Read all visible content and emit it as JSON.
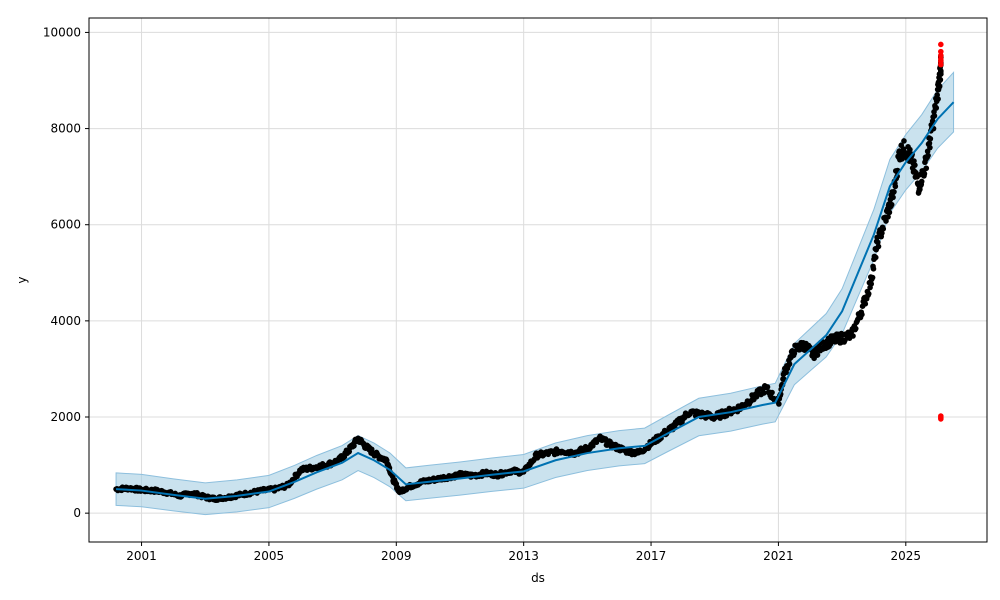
{
  "chart_data": {
    "type": "scatter",
    "title": "",
    "xlabel": "ds",
    "ylabel": "y",
    "xlim": [
      1999.35,
      2027.55
    ],
    "ylim": [
      -600,
      10300
    ],
    "x_ticks": [
      2001,
      2005,
      2009,
      2013,
      2017,
      2021,
      2025
    ],
    "x_tick_labels": [
      "2001",
      "2005",
      "2009",
      "2013",
      "2017",
      "2021",
      "2025"
    ],
    "y_ticks": [
      0,
      2000,
      4000,
      6000,
      8000,
      10000
    ],
    "y_tick_labels": [
      "0",
      "2000",
      "4000",
      "6000",
      "8000",
      "10000"
    ],
    "grid": true,
    "colors": {
      "observed": "#000000",
      "forecast": "#0072B2",
      "interval": "#A6CEE3",
      "outliers": "#FF0000"
    },
    "series": [
      {
        "kind": "observed",
        "x": [
          2000.2,
          2000.6,
          2001.0,
          2001.4,
          2001.8,
          2002.2,
          2002.6,
          2003.0,
          2003.3,
          2003.7,
          2004.0,
          2004.4,
          2004.8,
          2005.2,
          2005.6,
          2006.0,
          2006.4,
          2006.8,
          2007.2,
          2007.5,
          2007.8,
          2008.1,
          2008.4,
          2008.7,
          2008.9,
          2009.1,
          2009.4,
          2009.8,
          2010.2,
          2010.6,
          2011.0,
          2011.4,
          2011.8,
          2012.2,
          2012.6,
          2013.0,
          2013.4,
          2013.8,
          2014.2,
          2014.6,
          2015.0,
          2015.4,
          2015.8,
          2016.2,
          2016.6,
          2017.0,
          2017.4,
          2017.8,
          2018.2,
          2018.6,
          2019.0,
          2019.4,
          2019.8,
          2020.2,
          2020.6,
          2021.0,
          2021.2,
          2021.5,
          2021.8,
          2022.1,
          2022.4,
          2022.7,
          2023.0,
          2023.3,
          2023.6,
          2023.9,
          2024.1,
          2024.4,
          2024.6,
          2024.8,
          2025.0,
          2025.2,
          2025.4,
          2025.6,
          2025.8,
          2026.0,
          2026.1
        ],
        "y": [
          500,
          520,
          480,
          470,
          430,
          360,
          420,
          330,
          300,
          330,
          370,
          420,
          470,
          500,
          580,
          900,
          950,
          1000,
          1100,
          1300,
          1550,
          1350,
          1200,
          1100,
          700,
          450,
          550,
          650,
          700,
          750,
          800,
          780,
          830,
          800,
          880,
          850,
          1200,
          1250,
          1300,
          1250,
          1350,
          1550,
          1400,
          1300,
          1250,
          1450,
          1650,
          1850,
          2100,
          2050,
          2000,
          2100,
          2200,
          2400,
          2600,
          2300,
          2950,
          3400,
          3500,
          3300,
          3500,
          3600,
          3650,
          3700,
          4200,
          4800,
          5600,
          6200,
          6600,
          7500,
          7600,
          7300,
          6800,
          7200,
          7900,
          8700,
          9300
        ]
      },
      {
        "kind": "forecast",
        "x": [
          2000.2,
          2001.0,
          2002.0,
          2003.0,
          2004.0,
          2005.0,
          2005.8,
          2006.5,
          2007.3,
          2007.8,
          2008.3,
          2008.8,
          2009.3,
          2010.0,
          2011.0,
          2012.0,
          2013.0,
          2014.0,
          2015.0,
          2016.0,
          2016.8,
          2017.5,
          2018.5,
          2019.5,
          2020.5,
          2020.9,
          2021.5,
          2022.0,
          2022.5,
          2023.0,
          2023.5,
          2024.0,
          2024.5,
          2025.0,
          2025.5,
          2026.0,
          2026.5
        ],
        "y": [
          500,
          470,
          380,
          300,
          360,
          450,
          650,
          850,
          1050,
          1250,
          1100,
          900,
          600,
          650,
          720,
          800,
          870,
          1100,
          1250,
          1350,
          1400,
          1650,
          2000,
          2100,
          2250,
          2300,
          3100,
          3400,
          3700,
          4200,
          5000,
          5800,
          6800,
          7300,
          7700,
          8200,
          8550
        ]
      },
      {
        "kind": "outliers",
        "x": [
          2026.1,
          2026.1,
          2026.1,
          2026.1,
          2026.1,
          2026.1,
          2026.1,
          2026.1,
          2026.1
        ],
        "y": [
          9750,
          9600,
          9520,
          9450,
          9400,
          9330,
          2020,
          1990,
          1960
        ]
      }
    ]
  }
}
